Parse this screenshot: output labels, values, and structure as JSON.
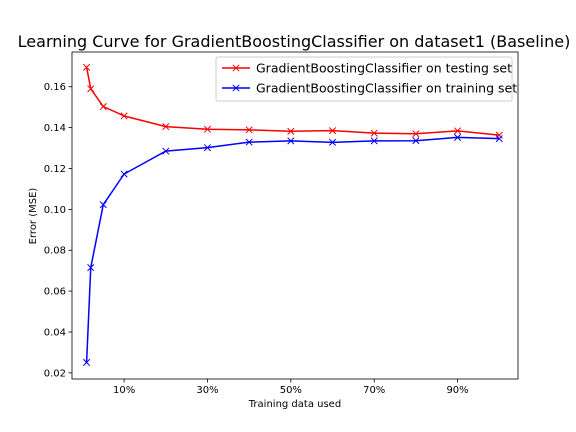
{
  "chart_data": {
    "type": "line",
    "title": "Learning Curve for GradientBoostingClassifier on dataset1 (Baseline)",
    "xlabel": "Training data used",
    "ylabel": "Error (MSE)",
    "xlim": [
      -0.025,
      1.045
    ],
    "ylim": [
      0.017,
      0.177
    ],
    "x_ticks": [
      {
        "value": 0.1,
        "label": "10%"
      },
      {
        "value": 0.3,
        "label": "30%"
      },
      {
        "value": 0.5,
        "label": "50%"
      },
      {
        "value": 0.7,
        "label": "70%"
      },
      {
        "value": 0.9,
        "label": "90%"
      }
    ],
    "y_ticks": [
      {
        "value": 0.02,
        "label": "0.02"
      },
      {
        "value": 0.04,
        "label": "0.04"
      },
      {
        "value": 0.06,
        "label": "0.06"
      },
      {
        "value": 0.08,
        "label": "0.08"
      },
      {
        "value": 0.1,
        "label": "0.10"
      },
      {
        "value": 0.12,
        "label": "0.12"
      },
      {
        "value": 0.14,
        "label": "0.14"
      },
      {
        "value": 0.16,
        "label": "0.16"
      }
    ],
    "legend_position": "top-right",
    "x": [
      0.01,
      0.02,
      0.05,
      0.1,
      0.2,
      0.3,
      0.4,
      0.5,
      0.6,
      0.7,
      0.8,
      0.9,
      1.0
    ],
    "series": [
      {
        "name": "GradientBoostingClassifier on testing set",
        "color": "#ff0000",
        "marker": "x",
        "values": [
          0.1695,
          0.159,
          0.1503,
          0.1457,
          0.1405,
          0.1392,
          0.1389,
          0.1382,
          0.1385,
          0.1373,
          0.137,
          0.1384,
          0.1363
        ]
      },
      {
        "name": "GradientBoostingClassifier on training set",
        "color": "#0000ff",
        "marker": "x",
        "values": [
          0.0251,
          0.0715,
          0.1023,
          0.1173,
          0.1285,
          0.1302,
          0.1329,
          0.1335,
          0.1328,
          0.1335,
          0.1336,
          0.1352,
          0.1346
        ]
      }
    ]
  }
}
